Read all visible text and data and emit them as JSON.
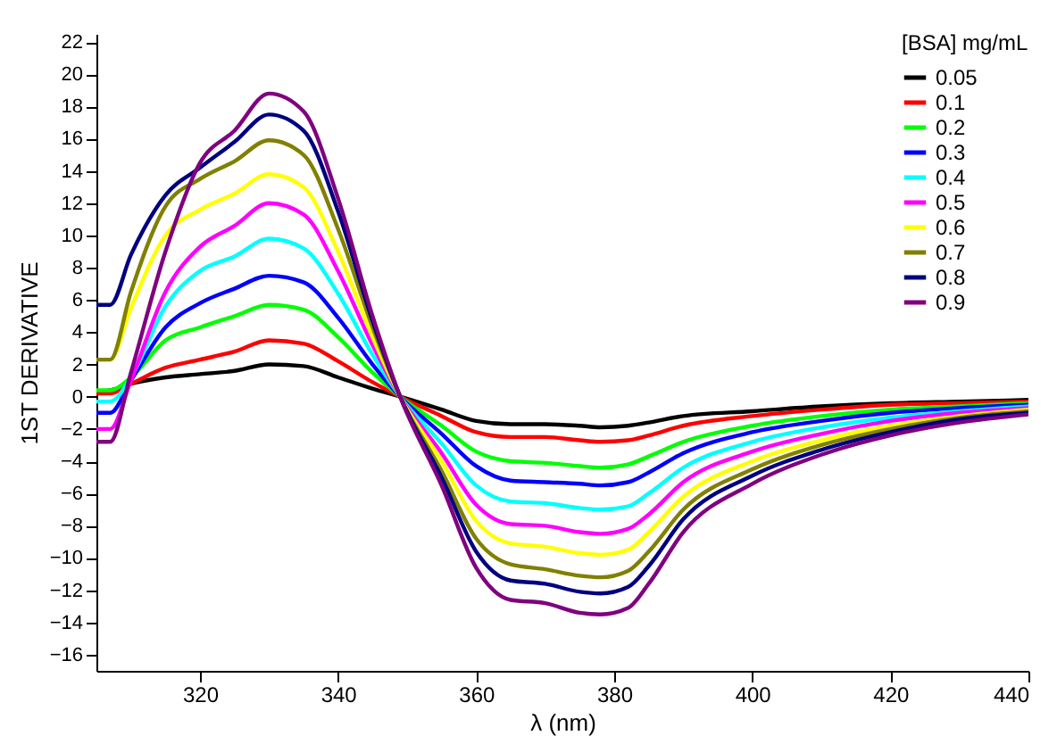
{
  "chart_data": {
    "type": "line",
    "xlabel": "λ (nm)",
    "ylabel": "1ST DERIVATIVE",
    "legend_title": "[BSA] mg/mL",
    "legend": "top right",
    "grid": false,
    "marker": "none",
    "line_style": "solid",
    "xlim": [
      305,
      440
    ],
    "xticks": [
      320,
      340,
      360,
      380,
      400,
      420,
      440
    ],
    "ylim": [
      -17,
      22.5
    ],
    "yticks": [
      -16,
      -14,
      -12,
      -10,
      -8,
      -6,
      -4,
      -2,
      0,
      2,
      4,
      6,
      8,
      10,
      12,
      14,
      16,
      18,
      20,
      22
    ],
    "x": [
      305,
      307,
      310,
      315,
      320,
      325,
      330,
      335,
      340,
      345,
      349,
      355,
      360,
      365,
      370,
      375,
      378,
      382,
      385,
      390,
      400,
      410,
      420,
      430,
      440
    ],
    "series": [
      {
        "name": "0.05",
        "color": "#000000",
        "values": [
          0.3,
          0.4,
          0.8,
          1.2,
          1.4,
          1.6,
          2.0,
          1.9,
          1.2,
          0.5,
          0,
          -0.8,
          -1.5,
          -1.7,
          -1.7,
          -1.8,
          -1.9,
          -1.8,
          -1.6,
          -1.2,
          -0.9,
          -0.6,
          -0.4,
          -0.3,
          -0.2
        ]
      },
      {
        "name": "0.1",
        "color": "#ff0000",
        "values": [
          0.2,
          0.2,
          0.8,
          1.8,
          2.3,
          2.8,
          3.5,
          3.3,
          2.2,
          0.9,
          0,
          -1.2,
          -2.2,
          -2.5,
          -2.5,
          -2.7,
          -2.8,
          -2.7,
          -2.4,
          -1.8,
          -1.2,
          -0.8,
          -0.5,
          -0.4,
          -0.3
        ]
      },
      {
        "name": "0.2",
        "color": "#00ff00",
        "values": [
          0.4,
          0.4,
          1.2,
          3.5,
          4.3,
          5.0,
          5.7,
          5.4,
          3.7,
          1.5,
          0,
          -1.8,
          -3.4,
          -4.0,
          -4.1,
          -4.3,
          -4.4,
          -4.2,
          -3.7,
          -2.8,
          -1.8,
          -1.2,
          -0.8,
          -0.6,
          -0.4
        ]
      },
      {
        "name": "0.3",
        "color": "#0000ff",
        "values": [
          -1.0,
          -1.0,
          1.0,
          4.3,
          5.8,
          6.7,
          7.5,
          7.1,
          4.9,
          2.0,
          0,
          -2.3,
          -4.3,
          -5.2,
          -5.3,
          -5.4,
          -5.5,
          -5.3,
          -4.7,
          -3.5,
          -2.2,
          -1.5,
          -1.0,
          -0.7,
          -0.5
        ]
      },
      {
        "name": "0.4",
        "color": "#00ffff",
        "values": [
          -0.3,
          -0.3,
          1.2,
          5.6,
          7.8,
          8.7,
          9.8,
          9.2,
          6.4,
          2.6,
          0,
          -2.9,
          -5.5,
          -6.5,
          -6.6,
          -6.9,
          -7.0,
          -6.8,
          -6.0,
          -4.4,
          -2.8,
          -1.9,
          -1.3,
          -0.9,
          -0.6
        ]
      },
      {
        "name": "0.5",
        "color": "#ff00ff",
        "values": [
          -2.0,
          -2.0,
          1.0,
          6.5,
          9.3,
          10.6,
          12.0,
          11.3,
          7.8,
          3.2,
          0,
          -3.5,
          -6.7,
          -7.9,
          -8.0,
          -8.4,
          -8.5,
          -8.2,
          -7.3,
          -5.3,
          -3.4,
          -2.3,
          -1.5,
          -1.0,
          -0.7
        ]
      },
      {
        "name": "0.6",
        "color": "#ffff00",
        "values": [
          2.3,
          2.3,
          5.5,
          10.0,
          11.6,
          12.6,
          13.8,
          13.0,
          9.0,
          3.7,
          0,
          -4.0,
          -7.7,
          -9.1,
          -9.3,
          -9.7,
          -9.8,
          -9.5,
          -8.4,
          -6.2,
          -4.0,
          -2.7,
          -1.8,
          -1.2,
          -0.8
        ]
      },
      {
        "name": "0.7",
        "color": "#808000",
        "values": [
          2.3,
          2.3,
          6.5,
          11.8,
          13.5,
          14.6,
          15.9,
          15.0,
          10.4,
          4.3,
          0,
          -4.6,
          -8.8,
          -10.4,
          -10.7,
          -11.1,
          -11.2,
          -10.8,
          -9.6,
          -7.0,
          -4.5,
          -3.0,
          -2.0,
          -1.3,
          -0.9
        ]
      },
      {
        "name": "0.8",
        "color": "#000080",
        "values": [
          5.7,
          5.7,
          8.8,
          12.5,
          14.2,
          15.8,
          17.5,
          16.5,
          11.5,
          4.7,
          0,
          -5.0,
          -9.6,
          -11.4,
          -11.6,
          -12.1,
          -12.2,
          -11.8,
          -10.5,
          -7.6,
          -4.9,
          -3.3,
          -2.2,
          -1.4,
          -1.0
        ]
      },
      {
        "name": "0.9",
        "color": "#800080",
        "values": [
          -2.8,
          -2.8,
          1.5,
          9.0,
          14.5,
          16.5,
          18.8,
          17.7,
          12.3,
          5.0,
          0,
          -5.5,
          -10.6,
          -12.6,
          -12.8,
          -13.4,
          -13.5,
          -13.1,
          -11.6,
          -8.4,
          -5.4,
          -3.6,
          -2.4,
          -1.6,
          -1.1
        ]
      }
    ]
  }
}
